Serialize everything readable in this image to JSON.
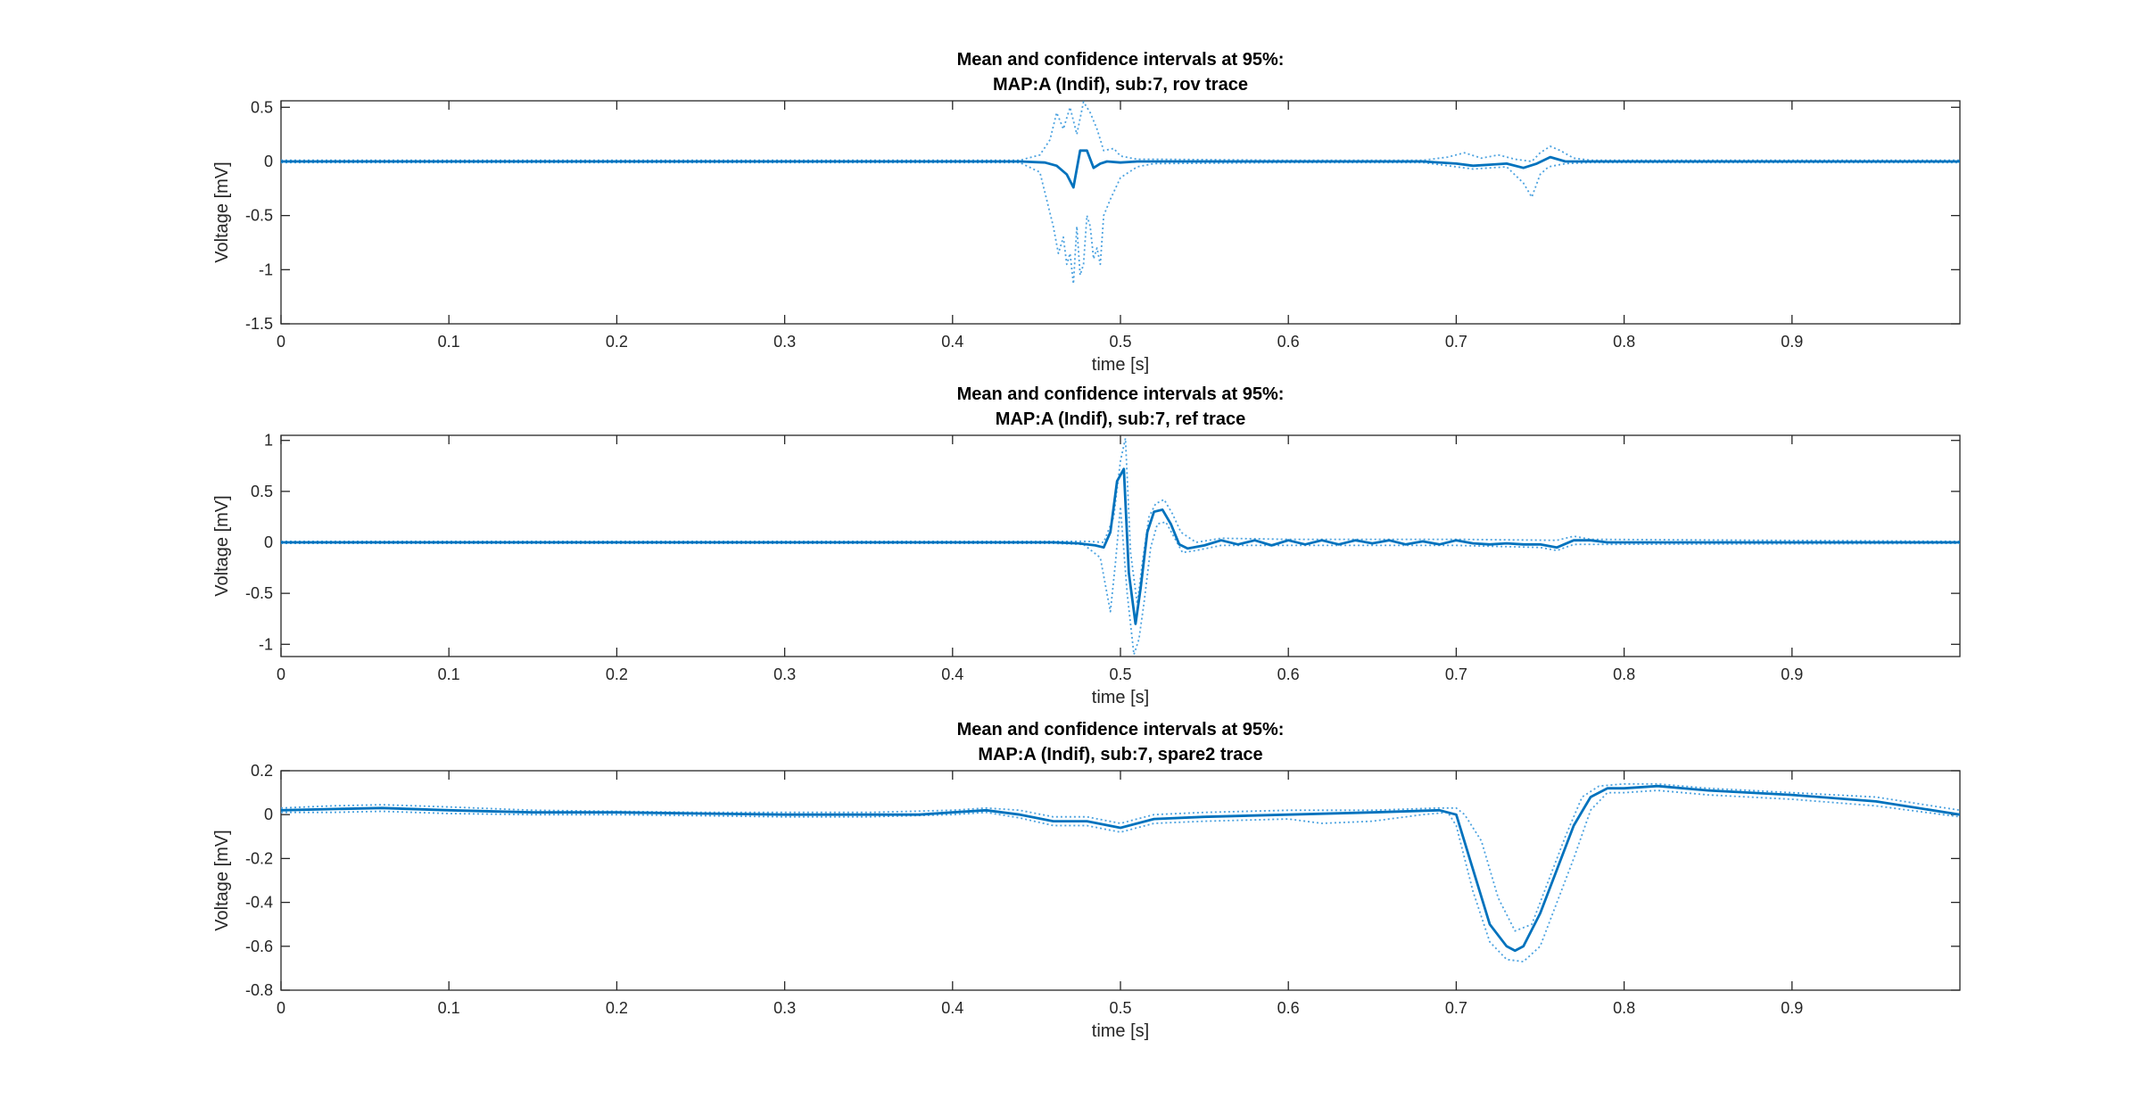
{
  "chart_data": [
    {
      "type": "line",
      "title": [
        "Mean and confidence intervals at 95%:",
        "MAP:A (Indif), sub:7, rov trace"
      ],
      "xlabel": "time [s]",
      "ylabel": "Voltage [mV]",
      "xlim": [
        0,
        1.0
      ],
      "ylim": [
        -1.5,
        0.56
      ],
      "xticks": [
        0,
        0.1,
        0.2,
        0.3,
        0.4,
        0.5,
        0.6,
        0.7,
        0.8,
        0.9
      ],
      "xtick_labels": [
        "0",
        "0.1",
        "0.2",
        "0.3",
        "0.4",
        "0.5",
        "0.6",
        "0.7",
        "0.8",
        "0.9"
      ],
      "yticks": [
        0.5,
        0,
        -0.5,
        -1,
        -1.5
      ],
      "ytick_labels": [
        "0.5",
        "0",
        "-0.5",
        "-1",
        "-1.5"
      ],
      "grid": false,
      "series": [
        {
          "role": "mean",
          "color": "#0072BD",
          "x": [
            0,
            0.44,
            0.455,
            0.462,
            0.468,
            0.472,
            0.476,
            0.48,
            0.484,
            0.488,
            0.492,
            0.5,
            0.51,
            0.52,
            0.6,
            0.68,
            0.7,
            0.71,
            0.72,
            0.73,
            0.74,
            0.748,
            0.756,
            0.765,
            0.78,
            1.0
          ],
          "y": [
            0,
            0,
            -0.01,
            -0.04,
            -0.12,
            -0.24,
            0.1,
            0.1,
            -0.06,
            -0.02,
            0.0,
            -0.01,
            0.0,
            0.0,
            0.0,
            0.0,
            -0.02,
            -0.04,
            -0.03,
            -0.02,
            -0.06,
            -0.02,
            0.04,
            0.0,
            0.0,
            0.0
          ]
        },
        {
          "role": "ci-upper",
          "color": "#4DA3E0",
          "x": [
            0,
            0.44,
            0.452,
            0.458,
            0.462,
            0.466,
            0.47,
            0.474,
            0.478,
            0.482,
            0.486,
            0.49,
            0.496,
            0.5,
            0.51,
            0.52,
            0.6,
            0.68,
            0.695,
            0.705,
            0.715,
            0.725,
            0.735,
            0.745,
            0.75,
            0.756,
            0.762,
            0.77,
            0.78,
            1.0
          ],
          "y": [
            0.01,
            0.01,
            0.06,
            0.2,
            0.45,
            0.3,
            0.5,
            0.25,
            0.55,
            0.45,
            0.3,
            0.1,
            0.12,
            0.05,
            0.02,
            0.02,
            0.01,
            0.01,
            0.04,
            0.08,
            0.03,
            0.06,
            0.02,
            0.0,
            0.08,
            0.14,
            0.1,
            0.03,
            0.01,
            0.01
          ]
        },
        {
          "role": "ci-lower",
          "color": "#4DA3E0",
          "x": [
            0,
            0.44,
            0.452,
            0.456,
            0.46,
            0.463,
            0.466,
            0.468,
            0.47,
            0.472,
            0.474,
            0.476,
            0.478,
            0.48,
            0.482,
            0.484,
            0.486,
            0.488,
            0.49,
            0.494,
            0.5,
            0.51,
            0.52,
            0.6,
            0.68,
            0.7,
            0.71,
            0.72,
            0.73,
            0.74,
            0.745,
            0.75,
            0.755,
            0.765,
            0.78,
            1.0
          ],
          "y": [
            -0.01,
            -0.01,
            -0.1,
            -0.35,
            -0.6,
            -0.85,
            -0.7,
            -0.95,
            -0.85,
            -1.13,
            -0.6,
            -1.05,
            -0.95,
            -0.5,
            -0.6,
            -0.9,
            -0.8,
            -0.95,
            -0.5,
            -0.35,
            -0.15,
            -0.05,
            -0.02,
            -0.01,
            -0.01,
            -0.05,
            -0.07,
            -0.06,
            -0.05,
            -0.2,
            -0.33,
            -0.12,
            -0.05,
            -0.02,
            -0.01,
            -0.01
          ]
        }
      ]
    },
    {
      "type": "line",
      "title": [
        "Mean and confidence intervals at 95%:",
        "MAP:A (Indif), sub:7, ref trace"
      ],
      "xlabel": "time [s]",
      "ylabel": "Voltage [mV]",
      "xlim": [
        0,
        1.0
      ],
      "ylim": [
        -1.12,
        1.05
      ],
      "xticks": [
        0,
        0.1,
        0.2,
        0.3,
        0.4,
        0.5,
        0.6,
        0.7,
        0.8,
        0.9
      ],
      "xtick_labels": [
        "0",
        "0.1",
        "0.2",
        "0.3",
        "0.4",
        "0.5",
        "0.6",
        "0.7",
        "0.8",
        "0.9"
      ],
      "yticks": [
        1,
        0.5,
        0,
        -0.5,
        -1
      ],
      "ytick_labels": [
        "1",
        "0.5",
        "0",
        "-0.5",
        "-1"
      ],
      "grid": false,
      "series": [
        {
          "role": "mean",
          "color": "#0072BD",
          "x": [
            0,
            0.46,
            0.475,
            0.485,
            0.49,
            0.494,
            0.498,
            0.502,
            0.505,
            0.509,
            0.512,
            0.516,
            0.52,
            0.525,
            0.53,
            0.535,
            0.54,
            0.55,
            0.56,
            0.57,
            0.58,
            0.59,
            0.6,
            0.61,
            0.62,
            0.63,
            0.64,
            0.65,
            0.66,
            0.67,
            0.68,
            0.69,
            0.7,
            0.71,
            0.72,
            0.73,
            0.74,
            0.75,
            0.76,
            0.77,
            0.78,
            0.79,
            1.0
          ],
          "y": [
            0,
            0,
            -0.01,
            -0.03,
            -0.05,
            0.1,
            0.6,
            0.72,
            -0.3,
            -0.8,
            -0.45,
            0.1,
            0.3,
            0.32,
            0.18,
            -0.02,
            -0.06,
            -0.03,
            0.02,
            -0.02,
            0.02,
            -0.03,
            0.02,
            -0.02,
            0.02,
            -0.02,
            0.02,
            -0.01,
            0.02,
            -0.02,
            0.01,
            -0.02,
            0.02,
            -0.01,
            -0.02,
            -0.01,
            -0.02,
            -0.02,
            -0.05,
            0.02,
            0.02,
            0.0,
            0.0
          ]
        },
        {
          "role": "ci-upper",
          "color": "#4DA3E0",
          "x": [
            0,
            0.46,
            0.48,
            0.49,
            0.496,
            0.5,
            0.503,
            0.506,
            0.51,
            0.513,
            0.517,
            0.521,
            0.526,
            0.531,
            0.536,
            0.545,
            0.56,
            0.6,
            0.7,
            0.76,
            0.77,
            0.78,
            1.0
          ],
          "y": [
            0.01,
            0.01,
            0.01,
            0.0,
            0.25,
            0.8,
            1.02,
            -0.1,
            -0.6,
            -0.2,
            0.25,
            0.38,
            0.42,
            0.28,
            0.1,
            0.0,
            0.04,
            0.03,
            0.03,
            0.02,
            0.06,
            0.03,
            0.01
          ]
        },
        {
          "role": "ci-lower",
          "color": "#4DA3E0",
          "x": [
            0,
            0.46,
            0.478,
            0.488,
            0.494,
            0.497,
            0.5,
            0.504,
            0.508,
            0.511,
            0.514,
            0.518,
            0.522,
            0.527,
            0.532,
            0.537,
            0.545,
            0.56,
            0.6,
            0.7,
            0.75,
            0.76,
            0.77,
            1.0
          ],
          "y": [
            -0.01,
            -0.01,
            -0.02,
            -0.15,
            -0.68,
            -0.2,
            0.35,
            -0.5,
            -1.1,
            -0.95,
            -0.6,
            -0.05,
            0.18,
            0.2,
            0.05,
            -0.1,
            -0.08,
            -0.03,
            -0.03,
            -0.03,
            -0.05,
            -0.08,
            -0.02,
            -0.01
          ]
        }
      ]
    },
    {
      "type": "line",
      "title": [
        "Mean and confidence intervals at 95%:",
        "MAP:A (Indif), sub:7, spare2 trace"
      ],
      "xlabel": "time [s]",
      "ylabel": "Voltage [mV]",
      "xlim": [
        0,
        1.0
      ],
      "ylim": [
        -0.8,
        0.2
      ],
      "xticks": [
        0,
        0.1,
        0.2,
        0.3,
        0.4,
        0.5,
        0.6,
        0.7,
        0.8,
        0.9
      ],
      "xtick_labels": [
        "0",
        "0.1",
        "0.2",
        "0.3",
        "0.4",
        "0.5",
        "0.6",
        "0.7",
        "0.8",
        "0.9"
      ],
      "yticks": [
        0.2,
        0,
        -0.2,
        -0.4,
        -0.6,
        -0.8
      ],
      "ytick_labels": [
        "0.2",
        "0",
        "-0.2",
        "-0.4",
        "-0.6",
        "-0.8"
      ],
      "grid": false,
      "series": [
        {
          "role": "mean",
          "color": "#0072BD",
          "x": [
            0,
            0.03,
            0.06,
            0.1,
            0.15,
            0.2,
            0.25,
            0.3,
            0.35,
            0.38,
            0.4,
            0.42,
            0.44,
            0.46,
            0.48,
            0.5,
            0.52,
            0.55,
            0.6,
            0.65,
            0.69,
            0.7,
            0.71,
            0.72,
            0.73,
            0.735,
            0.74,
            0.75,
            0.76,
            0.77,
            0.78,
            0.79,
            0.8,
            0.82,
            0.85,
            0.9,
            0.95,
            1.0
          ],
          "y": [
            0.02,
            0.025,
            0.03,
            0.02,
            0.01,
            0.01,
            0.005,
            0.0,
            0.0,
            0.0,
            0.01,
            0.02,
            0.0,
            -0.03,
            -0.03,
            -0.06,
            -0.02,
            -0.01,
            0.0,
            0.01,
            0.02,
            0.0,
            -0.25,
            -0.5,
            -0.6,
            -0.62,
            -0.6,
            -0.45,
            -0.25,
            -0.05,
            0.08,
            0.12,
            0.12,
            0.13,
            0.11,
            0.09,
            0.06,
            0.0
          ]
        },
        {
          "role": "ci-upper",
          "color": "#4DA3E0",
          "x": [
            0,
            0.03,
            0.06,
            0.1,
            0.15,
            0.2,
            0.25,
            0.3,
            0.35,
            0.4,
            0.42,
            0.44,
            0.46,
            0.48,
            0.5,
            0.52,
            0.55,
            0.6,
            0.65,
            0.69,
            0.7,
            0.705,
            0.715,
            0.725,
            0.735,
            0.745,
            0.755,
            0.765,
            0.775,
            0.785,
            0.8,
            0.82,
            0.85,
            0.9,
            0.95,
            1.0
          ],
          "y": [
            0.03,
            0.04,
            0.045,
            0.035,
            0.02,
            0.015,
            0.01,
            0.01,
            0.01,
            0.02,
            0.03,
            0.02,
            -0.01,
            -0.01,
            -0.04,
            0.0,
            0.01,
            0.02,
            0.02,
            0.03,
            0.03,
            0.0,
            -0.12,
            -0.38,
            -0.53,
            -0.5,
            -0.3,
            -0.1,
            0.08,
            0.13,
            0.14,
            0.14,
            0.12,
            0.1,
            0.08,
            0.02
          ]
        },
        {
          "role": "ci-lower",
          "color": "#4DA3E0",
          "x": [
            0,
            0.03,
            0.06,
            0.1,
            0.15,
            0.2,
            0.25,
            0.3,
            0.35,
            0.4,
            0.42,
            0.44,
            0.46,
            0.48,
            0.5,
            0.52,
            0.55,
            0.6,
            0.62,
            0.65,
            0.68,
            0.695,
            0.7,
            0.71,
            0.72,
            0.73,
            0.74,
            0.75,
            0.76,
            0.77,
            0.78,
            0.79,
            0.8,
            0.82,
            0.85,
            0.9,
            0.95,
            1.0
          ],
          "y": [
            0.01,
            0.01,
            0.015,
            0.005,
            0.0,
            0.0,
            -0.005,
            -0.01,
            -0.01,
            0.0,
            0.01,
            -0.015,
            -0.05,
            -0.05,
            -0.08,
            -0.04,
            -0.03,
            -0.02,
            -0.04,
            -0.03,
            0.0,
            0.01,
            -0.05,
            -0.35,
            -0.58,
            -0.66,
            -0.67,
            -0.6,
            -0.4,
            -0.2,
            0.02,
            0.1,
            0.1,
            0.11,
            0.09,
            0.07,
            0.04,
            -0.01
          ]
        }
      ]
    }
  ]
}
